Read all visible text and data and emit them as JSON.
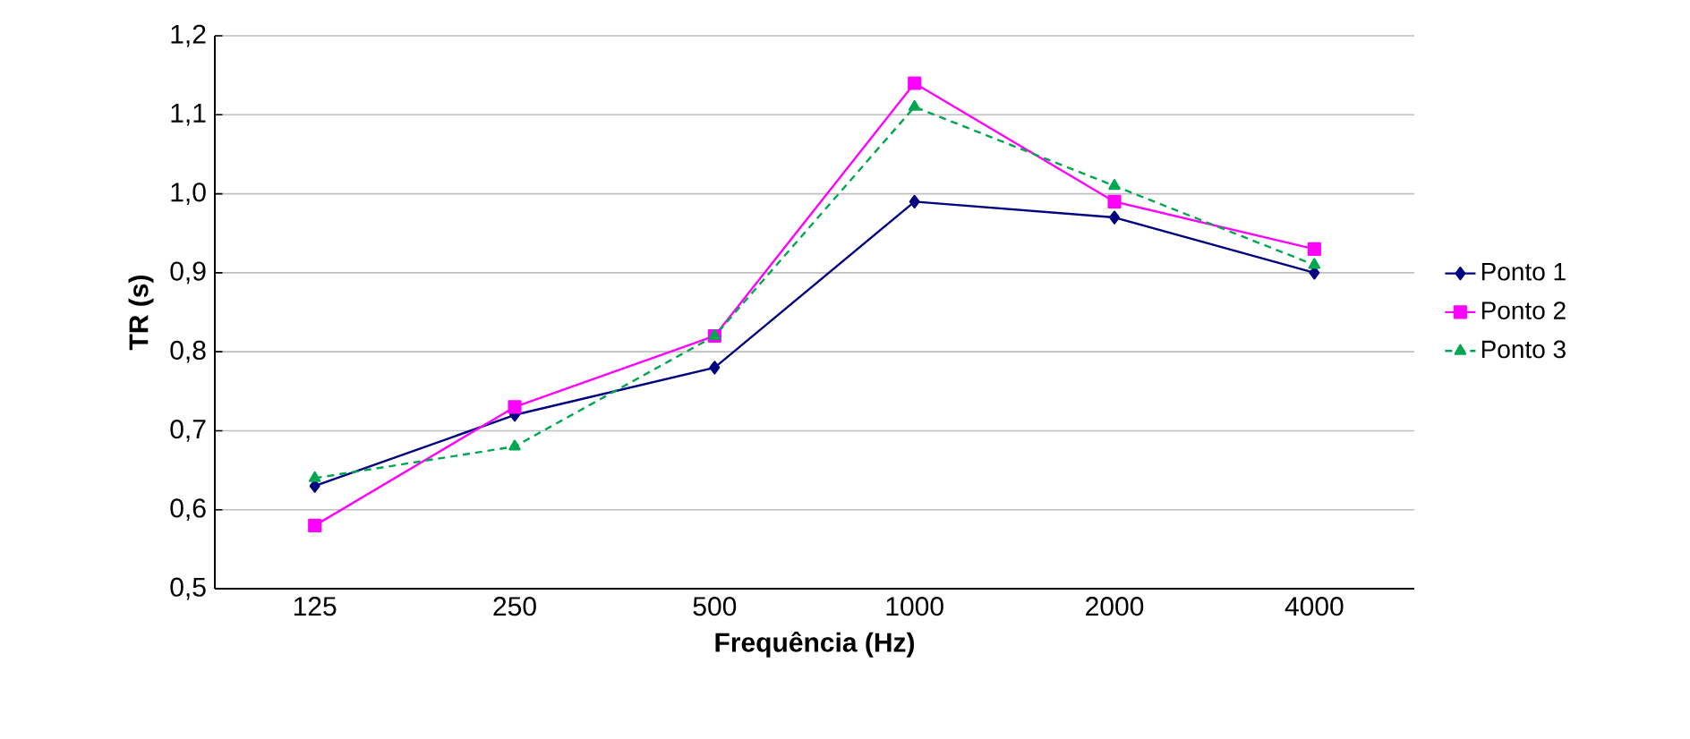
{
  "chart_data": {
    "type": "line",
    "xlabel": "Frequência (Hz)",
    "ylabel": "TR (s)",
    "categories": [
      "125",
      "250",
      "500",
      "1000",
      "2000",
      "4000"
    ],
    "series": [
      {
        "name": "Ponto 1",
        "color": "#000080",
        "marker": "diamond",
        "line_style": "solid",
        "values": [
          0.63,
          0.72,
          0.78,
          0.99,
          0.97,
          0.9
        ]
      },
      {
        "name": "Ponto 2",
        "color": "#ff00ff",
        "marker": "square",
        "line_style": "solid",
        "values": [
          0.58,
          0.73,
          0.82,
          1.14,
          0.99,
          0.93
        ]
      },
      {
        "name": "Ponto 3",
        "color": "#00a650",
        "marker": "triangle",
        "line_style": "dashed",
        "values": [
          0.64,
          0.68,
          0.82,
          1.11,
          1.01,
          0.91
        ]
      }
    ],
    "ylim": [
      0.5,
      1.2
    ],
    "yticks": [
      {
        "value": 0.5,
        "label": "0,5"
      },
      {
        "value": 0.6,
        "label": "0,6"
      },
      {
        "value": 0.7,
        "label": "0,7"
      },
      {
        "value": 0.8,
        "label": "0,8"
      },
      {
        "value": 0.9,
        "label": "0,9"
      },
      {
        "value": 1.0,
        "label": "1,0"
      },
      {
        "value": 1.1,
        "label": "1,1"
      },
      {
        "value": 1.2,
        "label": "1,2"
      }
    ],
    "grid": "y",
    "legend": "right"
  }
}
